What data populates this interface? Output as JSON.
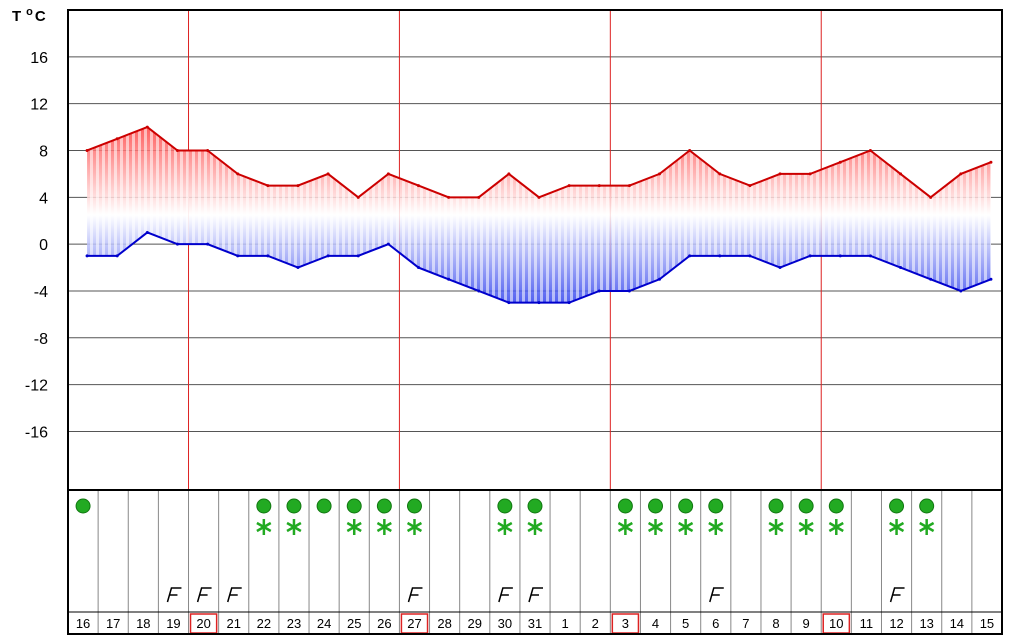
{
  "chart_data": {
    "type": "area",
    "title": "",
    "ylabel": "T °C",
    "ylabel_parts": {
      "base": "T",
      "degree": "o",
      "unit": "C"
    },
    "ylim": [
      -21,
      20
    ],
    "yticks": [
      16,
      12,
      8,
      4,
      0,
      -4,
      -8,
      -12,
      -16
    ],
    "grid": true,
    "legend": "none",
    "categories": [
      "16",
      "17",
      "18",
      "19",
      "20",
      "21",
      "22",
      "23",
      "24",
      "25",
      "26",
      "27",
      "28",
      "29",
      "30",
      "31",
      "1",
      "2",
      "3",
      "4",
      "5",
      "6",
      "7",
      "8",
      "9",
      "10",
      "11",
      "12",
      "13",
      "14",
      "15"
    ],
    "highlighted_days": [
      "20",
      "27",
      "3",
      "10"
    ],
    "series": [
      {
        "values": [
          8,
          9,
          10,
          8,
          8,
          6,
          5,
          5,
          6,
          4,
          6,
          5,
          4,
          4,
          6,
          4,
          5,
          5,
          5,
          6,
          8,
          6,
          5,
          6,
          6,
          7,
          8,
          6,
          4,
          6,
          7
        ]
      },
      {
        "values": [
          -1,
          -1,
          1,
          0,
          0,
          -1,
          -1,
          -2,
          -1,
          -1,
          0,
          -2,
          -3,
          -4,
          -5,
          -5,
          -5,
          -4,
          -4,
          -3,
          -1,
          -1,
          -1,
          -2,
          -1,
          -1,
          -1,
          -2,
          -3,
          -4,
          -3
        ]
      }
    ],
    "weather_icons": [
      [
        "rain"
      ],
      [],
      [],
      [
        "wind"
      ],
      [
        "wind"
      ],
      [
        "wind"
      ],
      [
        "rain",
        "snow"
      ],
      [
        "rain",
        "snow"
      ],
      [
        "rain"
      ],
      [
        "rain",
        "snow"
      ],
      [
        "rain",
        "snow"
      ],
      [
        "rain",
        "snow",
        "wind"
      ],
      [],
      [],
      [
        "rain",
        "snow",
        "wind"
      ],
      [
        "rain",
        "snow",
        "wind"
      ],
      [],
      [],
      [
        "rain",
        "snow"
      ],
      [
        "rain",
        "snow"
      ],
      [
        "rain",
        "snow"
      ],
      [
        "rain",
        "snow",
        "wind"
      ],
      [],
      [
        "rain",
        "snow"
      ],
      [
        "rain",
        "snow"
      ],
      [
        "rain",
        "snow"
      ],
      [],
      [
        "rain",
        "snow",
        "wind"
      ],
      [
        "rain",
        "snow"
      ],
      [],
      []
    ],
    "colors": {
      "max_line": "#cc0000",
      "min_line": "#0000cc",
      "gridline": "#555555",
      "week_separator": "#dd2222",
      "rain_dot": "#22aa22",
      "snow_icon": "#22aa22"
    }
  }
}
